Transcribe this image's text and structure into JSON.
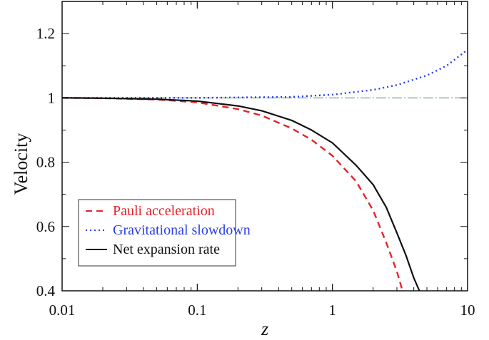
{
  "chart_data": {
    "type": "line",
    "title": "",
    "xlabel": "z",
    "ylabel": "Velocity",
    "xscale": "log",
    "xlim": [
      0.01,
      10
    ],
    "ylim": [
      0.4,
      1.3
    ],
    "x_ticks": [
      "0.01",
      "0.1",
      "1",
      "10"
    ],
    "y_ticks": [
      "0.4",
      "0.6",
      "0.8",
      "1",
      "1.2"
    ],
    "grid": false,
    "legend_position": "bottom-left",
    "reference_line": {
      "y": 1,
      "color": "#6a9a6a"
    },
    "series": [
      {
        "name": "Pauli acceleration",
        "color": "#e8222a",
        "style": "dashed",
        "x": [
          0.01,
          0.02,
          0.05,
          0.1,
          0.2,
          0.3,
          0.5,
          0.7,
          1.0,
          1.5,
          2.0,
          2.5,
          3.0,
          3.3
        ],
        "y": [
          1.0,
          0.999,
          0.995,
          0.986,
          0.965,
          0.945,
          0.905,
          0.87,
          0.82,
          0.74,
          0.65,
          0.55,
          0.46,
          0.4
        ]
      },
      {
        "name": "Gravitational slowdown",
        "color": "#2a3ee8",
        "style": "dotted",
        "x": [
          0.01,
          0.1,
          0.5,
          1.0,
          2.0,
          3.0,
          5.0,
          7.0,
          10.0
        ],
        "y": [
          1.0,
          1.0,
          1.003,
          1.01,
          1.025,
          1.04,
          1.07,
          1.1,
          1.15
        ]
      },
      {
        "name": "Net expansion rate",
        "color": "#111111",
        "style": "solid",
        "x": [
          0.01,
          0.02,
          0.05,
          0.1,
          0.2,
          0.3,
          0.5,
          0.7,
          1.0,
          1.5,
          2.0,
          2.5,
          3.0,
          3.5,
          4.0,
          4.4
        ],
        "y": [
          1.0,
          0.999,
          0.996,
          0.99,
          0.975,
          0.96,
          0.93,
          0.9,
          0.86,
          0.79,
          0.73,
          0.66,
          0.58,
          0.51,
          0.44,
          0.4
        ]
      }
    ]
  }
}
